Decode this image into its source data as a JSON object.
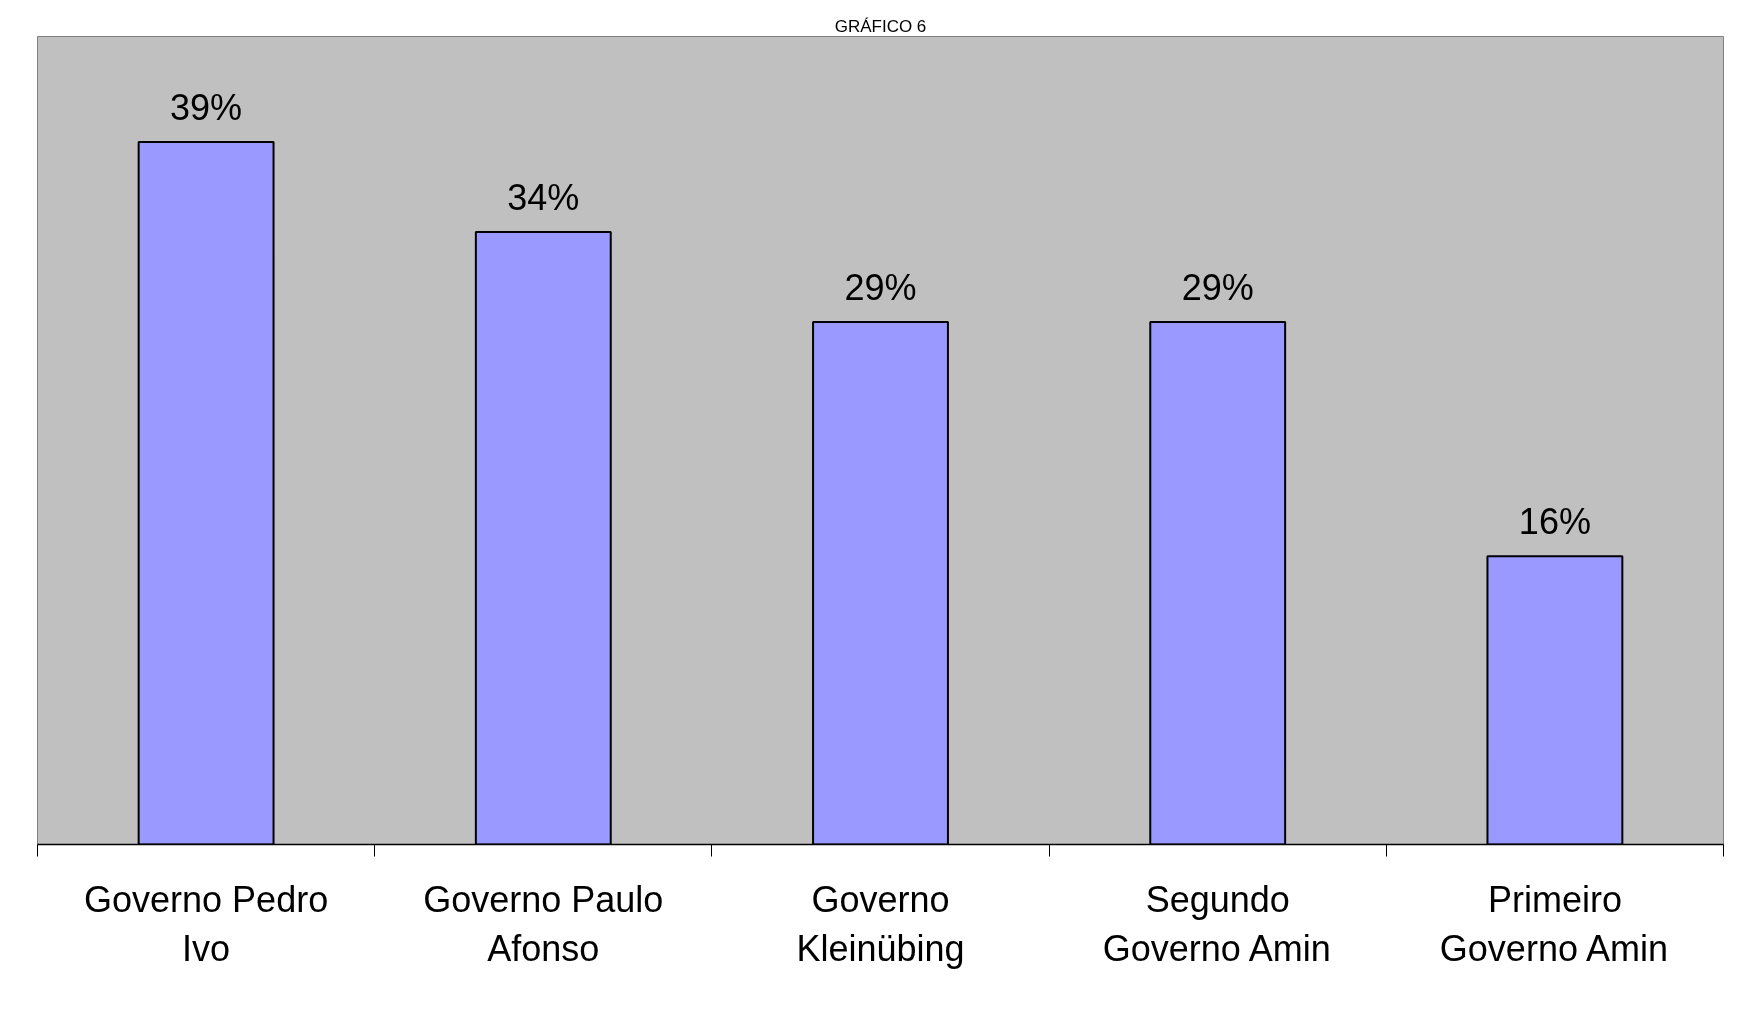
{
  "chart_data": {
    "type": "bar",
    "title": "GRÁFICO 6",
    "categories": [
      "Governo Pedro Ivo",
      "Governo Paulo Afonso",
      "Governo Kleinübing",
      "Segundo Governo Amin",
      "Primeiro Governo Amin"
    ],
    "values": [
      39,
      34,
      29,
      29,
      16
    ],
    "color": "#9999ff",
    "value_labels": [
      "39%",
      "34%",
      "29%",
      "29%",
      "16%"
    ],
    "tick_labels": "x",
    "grid": false
  }
}
